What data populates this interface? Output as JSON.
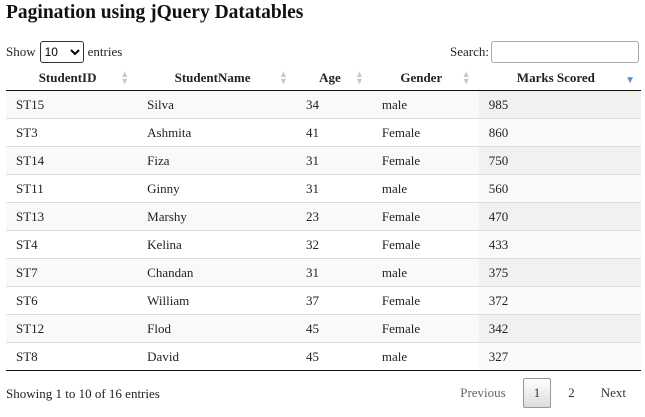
{
  "title": "Pagination using jQuery Datatables",
  "length_control": {
    "show_label": "Show",
    "selected": "10",
    "entries_label": "entries"
  },
  "search": {
    "label": "Search:",
    "value": ""
  },
  "columns": [
    "StudentID",
    "StudentName",
    "Age",
    "Gender",
    "Marks Scored"
  ],
  "rows": [
    [
      "ST15",
      "Silva",
      "34",
      "male",
      "985"
    ],
    [
      "ST3",
      "Ashmita",
      "41",
      "Female",
      "860"
    ],
    [
      "ST14",
      "Fiza",
      "31",
      "Female",
      "750"
    ],
    [
      "ST11",
      "Ginny",
      "31",
      "male",
      "560"
    ],
    [
      "ST13",
      "Marshy",
      "23",
      "Female",
      "470"
    ],
    [
      "ST4",
      "Kelina",
      "32",
      "Female",
      "433"
    ],
    [
      "ST7",
      "Chandan",
      "31",
      "male",
      "375"
    ],
    [
      "ST6",
      "William",
      "37",
      "Female",
      "372"
    ],
    [
      "ST12",
      "Flod",
      "45",
      "Female",
      "342"
    ],
    [
      "ST8",
      "David",
      "45",
      "male",
      "327"
    ]
  ],
  "info": "Showing 1 to 10 of 16 entries",
  "pagination": {
    "previous": "Previous",
    "pages": [
      "1",
      "2"
    ],
    "next": "Next"
  }
}
